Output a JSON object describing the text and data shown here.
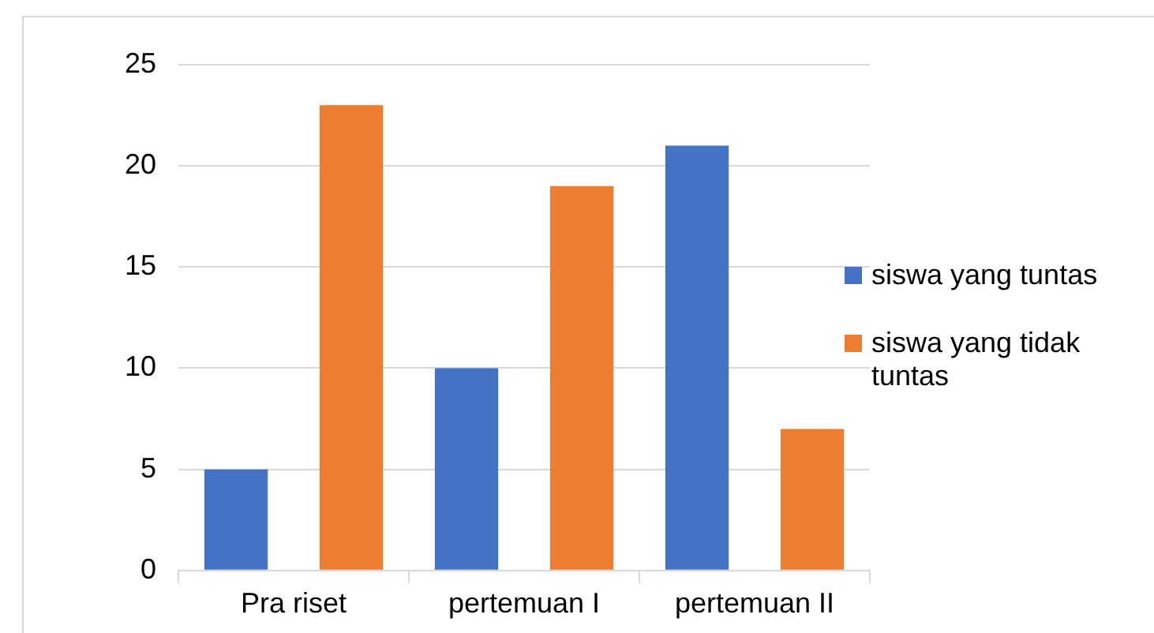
{
  "chart_data": {
    "type": "bar",
    "categories": [
      "Pra riset",
      "pertemuan I",
      "pertemuan II"
    ],
    "series": [
      {
        "name": "siswa yang tuntas",
        "color": "#4472c4",
        "values": [
          5,
          10,
          21
        ]
      },
      {
        "name": "siswa yang tidak tuntas",
        "color": "#ed7d31",
        "values": [
          23,
          19,
          7
        ]
      }
    ],
    "ylim": [
      0,
      25
    ],
    "yticks": [
      0,
      5,
      10,
      15,
      20,
      25
    ],
    "grid": "y",
    "legend": "right"
  }
}
